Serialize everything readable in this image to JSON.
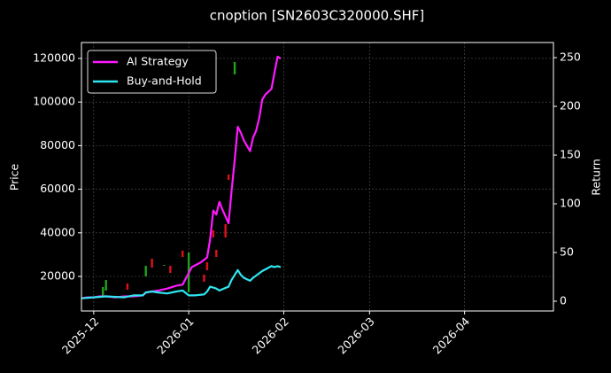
{
  "chart_data": {
    "type": "line",
    "title": "cnoption [SN2603C320000.SHF]",
    "ylabel": "Price",
    "y2label": "Return",
    "xlim": [
      -4,
      150
    ],
    "xticks": [
      {
        "value": 0,
        "label": "2025-12"
      },
      {
        "value": 31,
        "label": "2026-01"
      },
      {
        "value": 62,
        "label": "2026-02"
      },
      {
        "value": 90,
        "label": "2026-03"
      },
      {
        "value": 121,
        "label": "2026-04"
      }
    ],
    "ylim": [
      4150,
      127300
    ],
    "yticks": [
      20000,
      40000,
      60000,
      80000,
      100000,
      120000
    ],
    "y2lim": [
      -10,
      265.5
    ],
    "y2ticks": [
      0,
      50,
      100,
      150,
      200,
      250
    ],
    "grid": true,
    "legend": "upper left",
    "candles": {
      "up_color": "#1fa21f",
      "down_color": "#e0101a",
      "x": [
        3,
        4,
        11,
        17,
        19,
        23,
        25,
        29,
        31,
        36,
        37,
        39,
        40,
        43,
        44,
        46
      ],
      "open": [
        11060,
        13500,
        16750,
        20000,
        28130,
        24880,
        24880,
        31790,
        12680,
        20810,
        26500,
        41140,
        32200,
        43980,
        66750,
        112680
      ],
      "close": [
        15120,
        18370,
        13900,
        24880,
        24060,
        25280,
        21630,
        28940,
        30980,
        17560,
        22850,
        37890,
        28940,
        37890,
        64310,
        118370
      ]
    },
    "series": [
      {
        "name": "AI Strategy",
        "color": "#ff19ff",
        "axis": "y2",
        "x": [
          -4,
          -2,
          0,
          2,
          4,
          7,
          10,
          13,
          16,
          17,
          19,
          21,
          24,
          27,
          29,
          31,
          32,
          35,
          37,
          38,
          39,
          40,
          41,
          42,
          44,
          45,
          46,
          47,
          48,
          49,
          51,
          52,
          53,
          54,
          55,
          56,
          58,
          59,
          60,
          61
        ],
        "values": [
          3,
          4,
          4,
          5,
          5,
          4,
          5,
          5,
          6,
          9,
          10,
          11,
          13,
          16,
          17,
          29,
          35,
          40,
          45,
          64,
          93,
          89,
          102,
          94,
          80,
          114,
          145,
          179,
          173,
          165,
          154,
          168,
          175,
          188,
          207,
          212,
          218,
          235,
          251,
          249
        ]
      },
      {
        "name": "Buy-and-Hold",
        "color": "#2fe6f0",
        "axis": "y2",
        "x": [
          -4,
          0,
          4,
          10,
          13,
          16,
          17,
          19,
          21,
          24,
          27,
          29,
          31,
          33,
          36,
          37,
          38,
          40,
          41,
          44,
          45,
          47,
          48,
          49,
          51,
          52,
          55,
          58,
          59,
          60,
          61
        ],
        "values": [
          3,
          4,
          5,
          4,
          6,
          6,
          9,
          10,
          9,
          8,
          10,
          11,
          6,
          6,
          7,
          10,
          15,
          13,
          11,
          15,
          22,
          32,
          27,
          24,
          21,
          24,
          31,
          36,
          35,
          36,
          35
        ]
      }
    ]
  }
}
